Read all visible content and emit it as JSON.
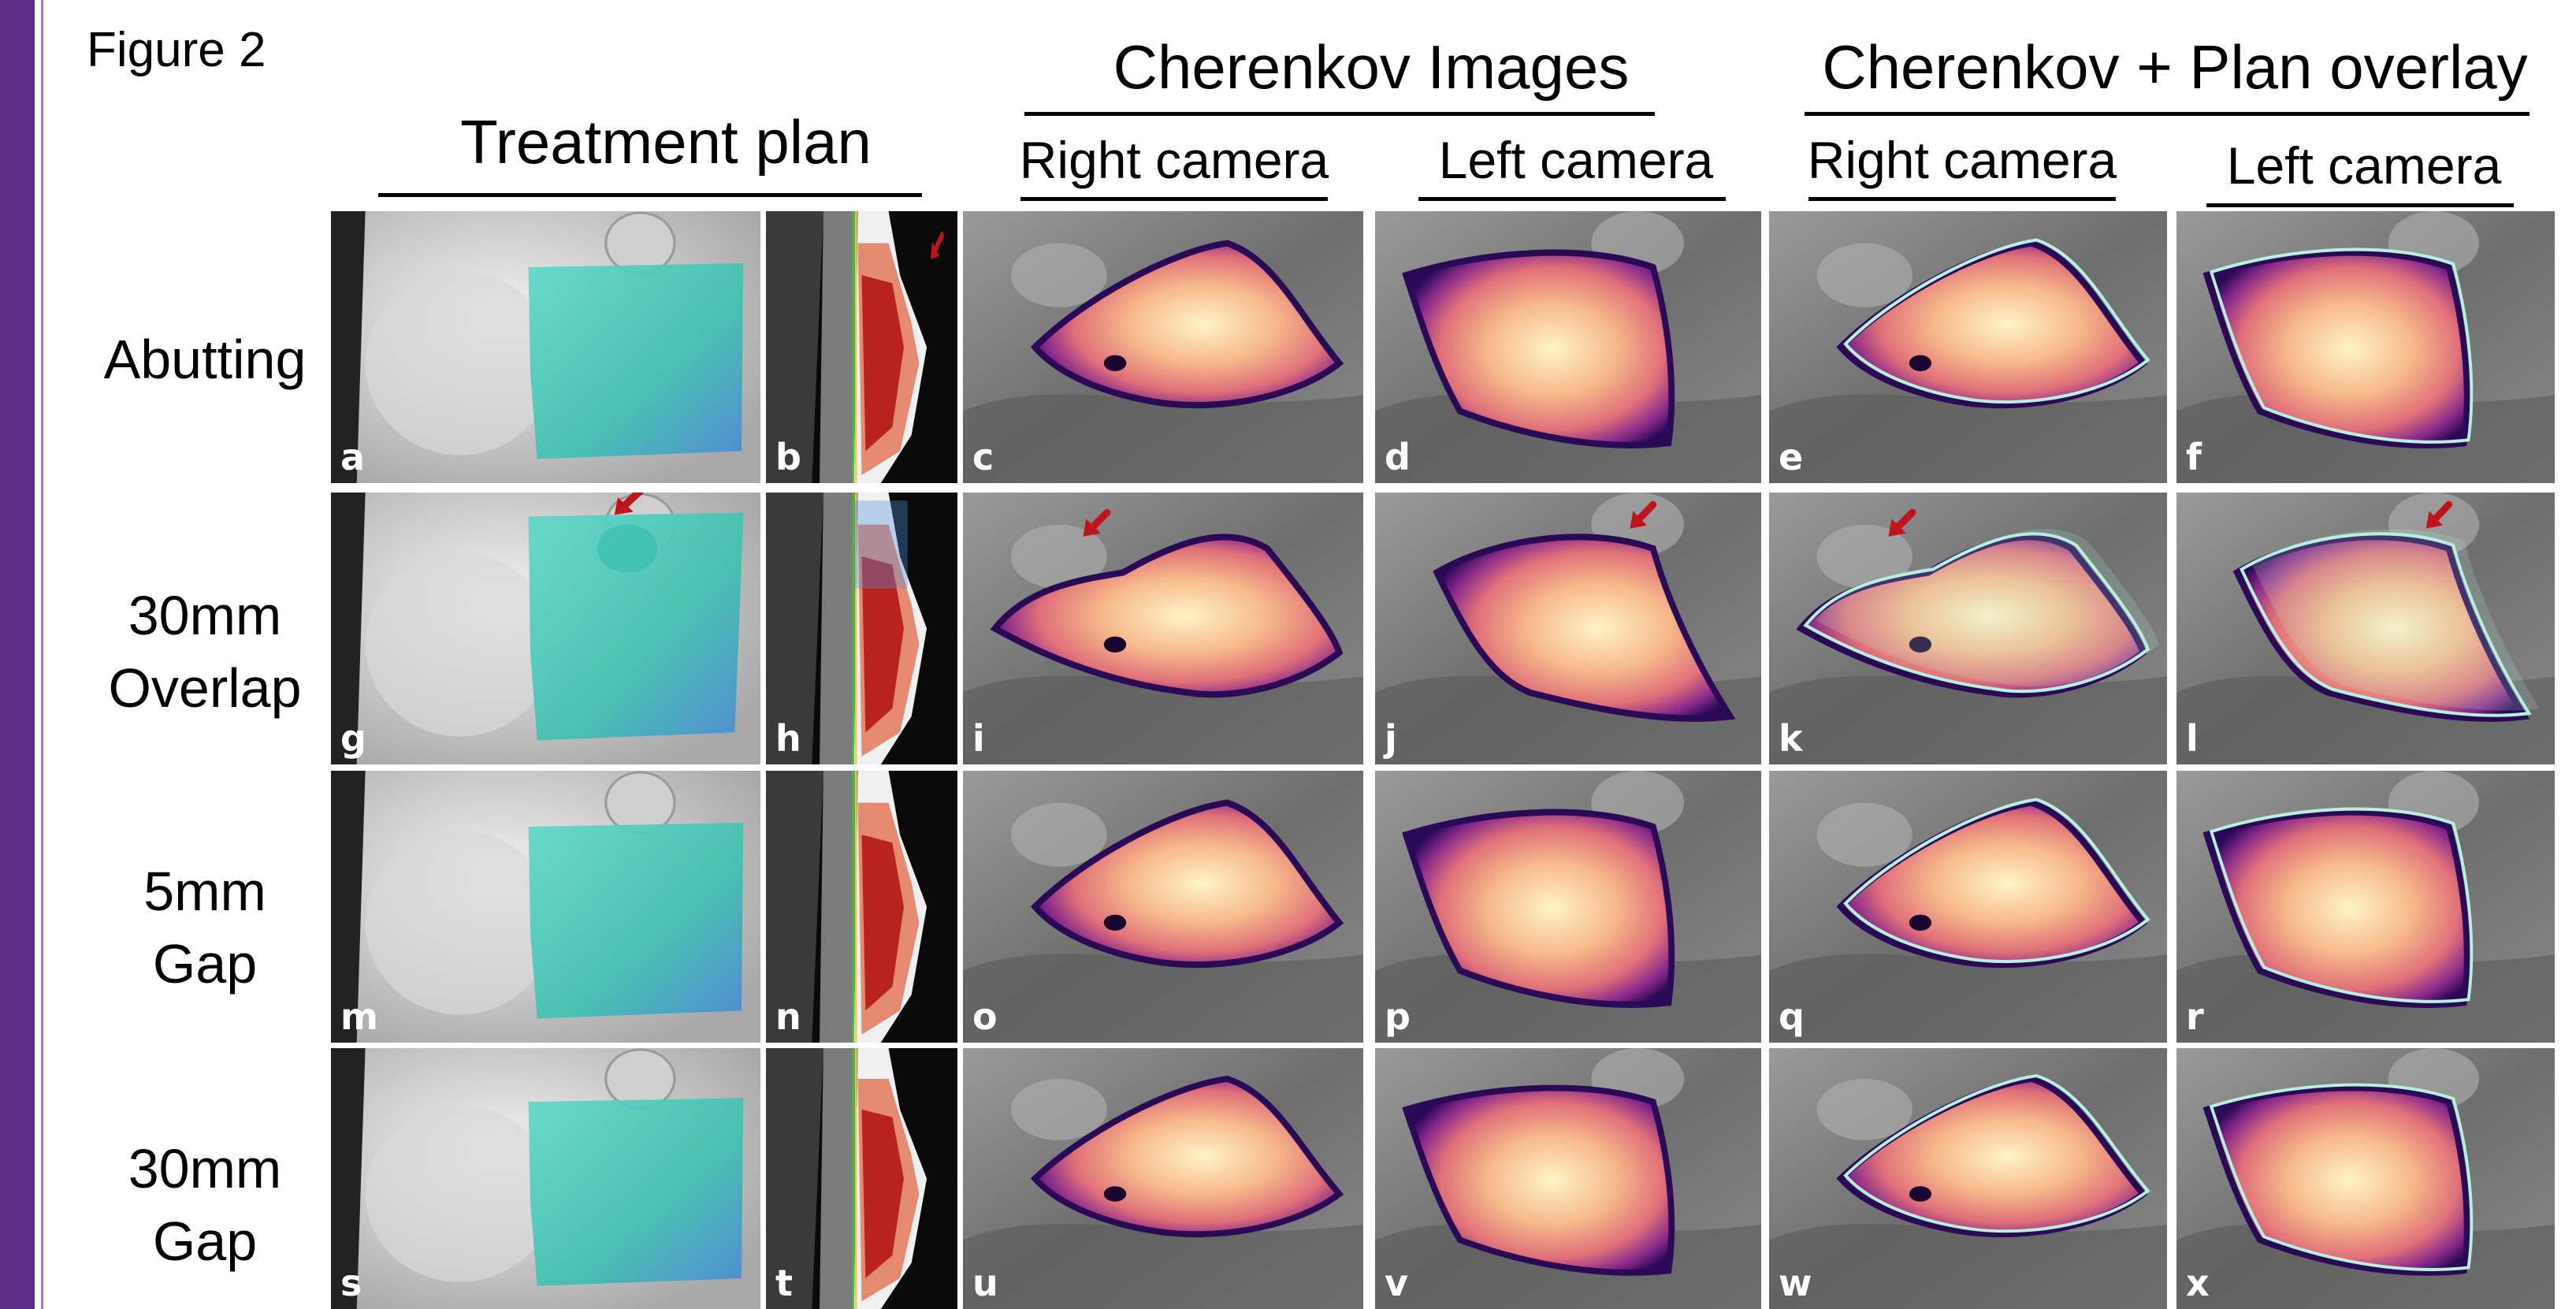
{
  "figure_label": "Figure 2",
  "headings": {
    "treatment_plan": "Treatment plan",
    "cherenkov_images": "Cherenkov Images",
    "cherenkov_overlay": "Cherenkov + Plan overlay",
    "right_camera_1": "Right camera",
    "left_camera_1": "Left camera",
    "right_camera_2": "Right camera",
    "left_camera_2": "Left camera"
  },
  "rows": [
    {
      "label_line1": "Abutting",
      "label_line2": "",
      "panels": [
        "a",
        "b",
        "c",
        "d",
        "e",
        "f"
      ],
      "arrows": [
        false,
        true,
        false,
        false,
        false,
        false
      ]
    },
    {
      "label_line1": "30mm",
      "label_line2": "Overlap",
      "panels": [
        "g",
        "h",
        "i",
        "j",
        "k",
        "l"
      ],
      "arrows": [
        true,
        false,
        true,
        true,
        true,
        true
      ]
    },
    {
      "label_line1": "5mm",
      "label_line2": "Gap",
      "panels": [
        "m",
        "n",
        "o",
        "p",
        "q",
        "r"
      ],
      "arrows": [
        false,
        false,
        false,
        false,
        false,
        false
      ]
    },
    {
      "label_line1": "30mm",
      "label_line2": "Gap",
      "panels": [
        "s",
        "t",
        "u",
        "v",
        "w",
        "x"
      ],
      "arrows": [
        false,
        false,
        false,
        false,
        false,
        false
      ]
    }
  ],
  "colors": {
    "accent_bar": "#5b2d86",
    "accent_line": "#a679c8",
    "arrow": "#c0141c",
    "overlay_contour": "#b8f0e0"
  }
}
